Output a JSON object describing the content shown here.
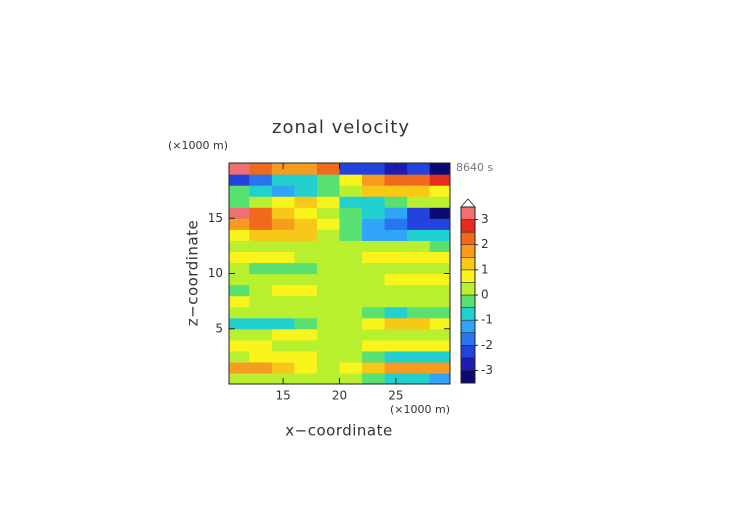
{
  "chart_data": {
    "type": "contour",
    "title": "zonal velocity",
    "xlabel": "x−coordinate",
    "ylabel": "z−coordinate",
    "x_unit_label": "(×1000 m)",
    "y_unit_label": "(×1000 m)",
    "annotation": "8640 s",
    "x": [
      11,
      13,
      15,
      17,
      19,
      21,
      23,
      25,
      27,
      29
    ],
    "y": [
      0.5,
      1.5,
      2.5,
      3.5,
      4.5,
      5.5,
      6.5,
      7.5,
      8.5,
      9.5,
      10.5,
      11.5,
      12.5,
      13.5,
      14.5,
      15.5,
      16.5,
      17.5,
      18.5,
      19.5
    ],
    "z": [
      [
        0.3,
        0.2,
        0.2,
        0.1,
        0,
        0.1,
        -0.5,
        -0.8,
        -1,
        -1.2
      ],
      [
        1.8,
        1.5,
        1.2,
        0.8,
        0.3,
        0.6,
        1.2,
        1.5,
        1.6,
        1.7
      ],
      [
        0.4,
        0.5,
        0.6,
        0.5,
        0.2,
        0.2,
        -0.3,
        -0.6,
        -0.8,
        -0.6
      ],
      [
        0.8,
        0.6,
        0.3,
        0.3,
        0.2,
        0.3,
        0.6,
        0.8,
        0.8,
        0.7
      ],
      [
        0.2,
        0.4,
        0.7,
        0.7,
        0.3,
        0.2,
        0.3,
        0.3,
        0.2,
        0.2
      ],
      [
        -0.6,
        -0.9,
        -0.6,
        -0.3,
        0.1,
        0.3,
        0.9,
        1.0,
        1.0,
        0.8
      ],
      [
        0.3,
        0.3,
        0.2,
        0.2,
        0.2,
        0.2,
        -0.3,
        -0.7,
        -0.5,
        -0.3
      ],
      [
        0.6,
        0.3,
        0.2,
        0.3,
        0.3,
        0.2,
        0.2,
        0.2,
        0.3,
        0.3
      ],
      [
        -0.3,
        0.2,
        0.6,
        0.7,
        0.3,
        0.3,
        0.4,
        0.3,
        0.2,
        0.3
      ],
      [
        0.3,
        0.3,
        0.3,
        0.2,
        0.3,
        0.3,
        0.3,
        0.7,
        0.8,
        0.6
      ],
      [
        0.2,
        -0.3,
        -0.5,
        -0.3,
        0.3,
        0.3,
        0.3,
        0.2,
        0.2,
        0.2
      ],
      [
        0.5,
        0.6,
        0.5,
        0.4,
        0.3,
        0.3,
        0.6,
        0.8,
        0.7,
        0.5
      ],
      [
        0.3,
        0.4,
        0.3,
        0.4,
        0.3,
        0.3,
        0.3,
        0.3,
        0.3,
        -0.3
      ],
      [
        0.6,
        1.0,
        1.3,
        1.1,
        0.4,
        -0.4,
        -1.1,
        -1.3,
        -1.0,
        -0.6
      ],
      [
        1.5,
        2.2,
        1.8,
        1.0,
        0.5,
        -0.5,
        -1.2,
        -1.6,
        -2.2,
        -2.5
      ],
      [
        3.1,
        2.4,
        1.3,
        0.8,
        0.3,
        -0.2,
        -0.6,
        -1.2,
        -2.4,
        -3.3
      ],
      [
        -0.5,
        0.2,
        0.7,
        1.3,
        0.6,
        -0.6,
        -1.0,
        -0.2,
        0.2,
        0.3
      ],
      [
        -0.4,
        -1.0,
        -1.4,
        -1.0,
        -0.5,
        0.4,
        1.0,
        1.3,
        1.2,
        0.8
      ],
      [
        -2.5,
        -1.8,
        -1.0,
        -0.6,
        -0.3,
        0.5,
        1.5,
        2.0,
        2.4,
        2.6
      ],
      [
        3.2,
        2.2,
        1.6,
        1.8,
        2.0,
        -2.2,
        -2.5,
        -2.8,
        -2.5,
        -3.2
      ]
    ],
    "xlim": [
      10.2,
      29.8
    ],
    "ylim": [
      0,
      20
    ],
    "xticks": [
      15,
      20,
      25
    ],
    "yticks": [
      5,
      10,
      15
    ],
    "colorbar": {
      "levels": [
        -3.5,
        -3,
        -2.5,
        -2,
        -1.5,
        -1,
        -0.5,
        0,
        0.5,
        1,
        1.5,
        2,
        2.5,
        3,
        3.5
      ],
      "colors": [
        "#0a0a70",
        "#1c1cb0",
        "#2244dc",
        "#2a74f0",
        "#30a4f6",
        "#22d0d0",
        "#58e070",
        "#b8f030",
        "#f8f41c",
        "#f8c818",
        "#f89c20",
        "#f06a1e",
        "#e42c20",
        "#f07070",
        "#f4b4b4"
      ],
      "over_color": "#ffffff",
      "ticks": [
        -3,
        -2,
        -1,
        0,
        1,
        2,
        3
      ]
    }
  }
}
